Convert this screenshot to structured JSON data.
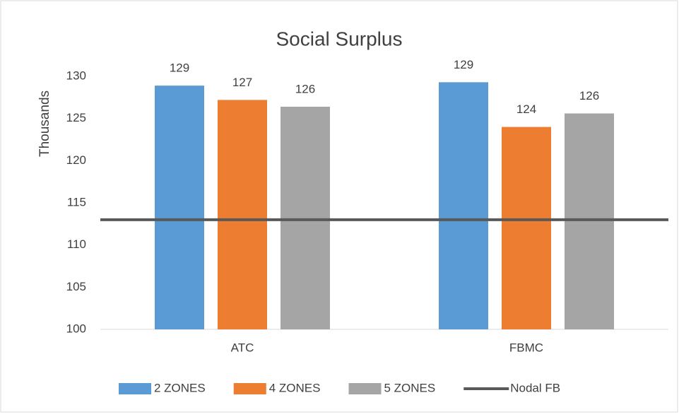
{
  "chart_data": {
    "type": "bar",
    "title": "Social Surplus",
    "y_label": "Thousands",
    "categories": [
      "ATC",
      "FBMC"
    ],
    "series": [
      {
        "name": "2 ZONES",
        "color": "#5b9bd5",
        "values": [
          128.9,
          129.3
        ],
        "value_labels": [
          "129",
          "129"
        ]
      },
      {
        "name": "4 ZONES",
        "color": "#ed7d31",
        "values": [
          127.2,
          124.0
        ],
        "value_labels": [
          "127",
          "124"
        ]
      },
      {
        "name": "5 ZONES",
        "color": "#a5a5a5",
        "values": [
          126.4,
          125.6
        ],
        "value_labels": [
          "126",
          "126"
        ]
      }
    ],
    "reference_lines": [
      {
        "name": "Nodal FB",
        "value": 113,
        "color": "#595959"
      }
    ],
    "ylim": [
      100,
      130
    ],
    "yticks": [
      100,
      105,
      110,
      115,
      120,
      125,
      130
    ],
    "grid": false,
    "legend": "bottom"
  }
}
